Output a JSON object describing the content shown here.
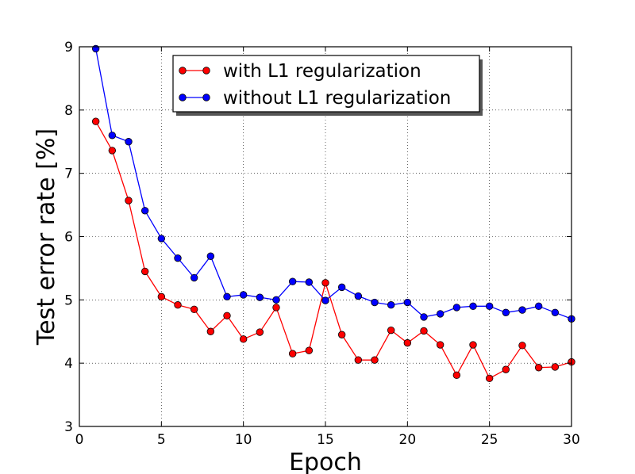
{
  "chart_data": {
    "type": "line",
    "title": "",
    "xlabel": "Epoch",
    "ylabel": "Test error rate [%]",
    "xlim": [
      0,
      30
    ],
    "ylim": [
      3,
      9
    ],
    "xticks": [
      0,
      5,
      10,
      15,
      20,
      25,
      30
    ],
    "yticks": [
      3,
      4,
      5,
      6,
      7,
      8,
      9
    ],
    "grid": true,
    "legend_position": "top-center",
    "x": [
      1,
      2,
      3,
      4,
      5,
      6,
      7,
      8,
      9,
      10,
      11,
      12,
      13,
      14,
      15,
      16,
      17,
      18,
      19,
      20,
      21,
      22,
      23,
      24,
      25,
      26,
      27,
      28,
      29,
      30
    ],
    "series": [
      {
        "name": "with L1 regularization",
        "color": "#ff0000",
        "values": [
          7.82,
          7.36,
          6.57,
          5.45,
          5.05,
          4.92,
          4.85,
          4.5,
          4.75,
          4.38,
          4.49,
          4.88,
          4.15,
          4.2,
          5.27,
          4.45,
          4.05,
          4.05,
          4.52,
          4.32,
          4.51,
          4.29,
          3.81,
          4.29,
          3.76,
          3.9,
          4.28,
          3.93,
          3.94,
          4.02
        ]
      },
      {
        "name": "without L1 regularization",
        "color": "#0000ff",
        "values": [
          8.97,
          7.6,
          7.5,
          6.41,
          5.97,
          5.66,
          5.35,
          5.69,
          5.05,
          5.08,
          5.04,
          5.0,
          5.29,
          5.28,
          4.99,
          5.2,
          5.06,
          4.96,
          4.92,
          4.96,
          4.73,
          4.78,
          4.88,
          4.9,
          4.9,
          4.8,
          4.84,
          4.9,
          4.8,
          4.7
        ]
      }
    ]
  }
}
